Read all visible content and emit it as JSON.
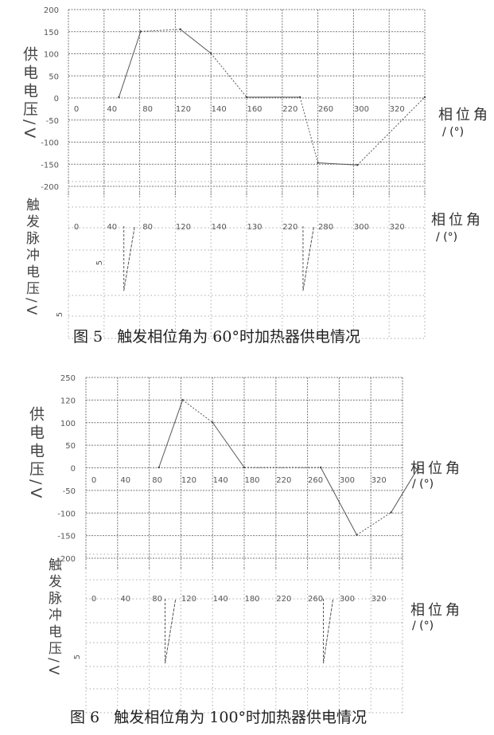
{
  "figures": [
    {
      "caption": "图 5   触发相位角为 60°时加热器供电情况"
    },
    {
      "caption": "图 6   触发相位角为 100°时加热器供电情况"
    }
  ],
  "chart_data": [
    {
      "type": "line",
      "figure": "图 5",
      "ylabel": "供电电压/V",
      "xlabel": "相位角",
      "xlabel_unit": "/ (°)",
      "x_ticks": [
        "0",
        "40",
        "80",
        "120",
        "140",
        "160",
        "220",
        "260",
        "300",
        "320"
      ],
      "y_ticks": [
        "200",
        "150",
        "100",
        "50",
        "0",
        "-50",
        "-100",
        "-150",
        "-200"
      ],
      "xlim": [
        0,
        360
      ],
      "ylim": [
        -200,
        200
      ],
      "grid": true,
      "series": [
        {
          "points": [
            [
              51,
              0
            ],
            [
              73,
              150
            ],
            [
              113,
              155
            ],
            [
              144,
              100
            ],
            [
              180,
              0
            ],
            [
              234,
              0
            ],
            [
              252,
              -150
            ],
            [
              292,
              -155
            ],
            [
              360,
              0
            ]
          ]
        }
      ],
      "line_color": "#555555"
    },
    {
      "type": "line",
      "figure": "图 5",
      "ylabel": "触发脉冲电压/V",
      "xlabel": "相位角",
      "xlabel_unit": "/ (°)",
      "x_ticks": [
        "0",
        "40",
        "80",
        "120",
        "140",
        "130",
        "220",
        "280",
        "300",
        "320"
      ],
      "y_ticks": [
        "5",
        "5"
      ],
      "xlim": [
        0,
        360
      ],
      "grid": true,
      "pulses": [
        {
          "start": 56,
          "end": 67,
          "depth": -5
        },
        {
          "start": 237,
          "end": 248,
          "depth": -5
        }
      ],
      "line_color": "#555555"
    },
    {
      "type": "line",
      "figure": "图 6",
      "ylabel": "供电电压/V",
      "xlabel": "相位角",
      "xlabel_unit": "/ (°)",
      "x_ticks": [
        "0",
        "40",
        "80",
        "120",
        "140",
        "180",
        "220",
        "260",
        "300",
        "320"
      ],
      "y_ticks": [
        "250",
        "120",
        "100",
        "50",
        "0",
        "-50",
        "-100",
        "-150",
        "-200"
      ],
      "xlim": [
        0,
        360
      ],
      "ylim": [
        -200,
        200
      ],
      "grid": true,
      "series": [
        {
          "points": [
            [
              83,
              0
            ],
            [
              110,
              150
            ],
            [
              144,
              100
            ],
            [
              180,
              0
            ],
            [
              267,
              0
            ],
            [
              308,
              -150
            ],
            [
              347,
              -100
            ],
            [
              378,
              0
            ]
          ]
        }
      ],
      "line_color": "#555555"
    },
    {
      "type": "line",
      "figure": "图 6",
      "ylabel": "触发脉冲电压/V",
      "xlabel": "相位角",
      "xlabel_unit": "/ (°)",
      "x_ticks": [
        "0",
        "40",
        "80",
        "120",
        "140",
        "180",
        "220",
        "260",
        "300",
        "320"
      ],
      "y_ticks": [
        "5"
      ],
      "xlim": [
        0,
        360
      ],
      "grid": true,
      "pulses": [
        {
          "start": 90,
          "end": 102,
          "depth": -5
        },
        {
          "start": 270,
          "end": 281,
          "depth": -5
        }
      ],
      "line_color": "#555555"
    }
  ]
}
